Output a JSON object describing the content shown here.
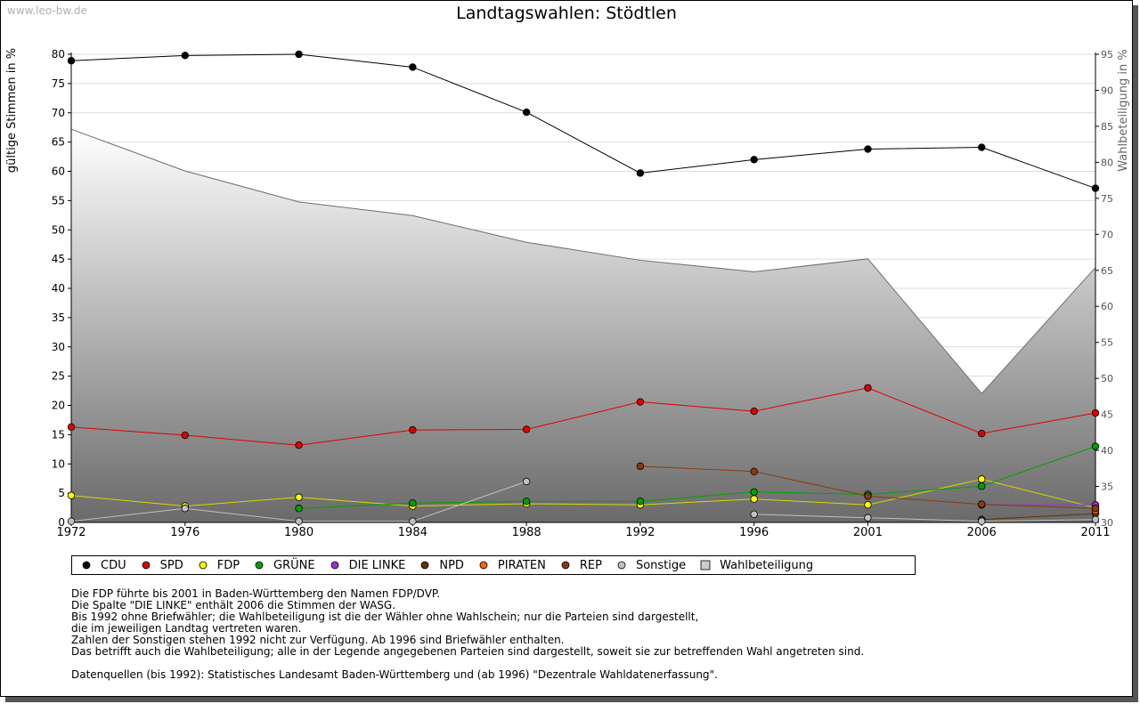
{
  "watermark": "www.leo-bw.de",
  "chart_data": {
    "type": "line",
    "title": "Landtagswahlen: Stödtlen",
    "ylabel": "gültige Stimmen in %",
    "y2label": "Wahlbeteiligung in %",
    "ylim": [
      0,
      80
    ],
    "y2lim": [
      30,
      95
    ],
    "yticks": [
      "0",
      "5",
      "10",
      "15",
      "20",
      "25",
      "30",
      "35",
      "40",
      "45",
      "50",
      "55",
      "60",
      "65",
      "70",
      "75",
      "80"
    ],
    "y2ticks": [
      "30",
      "35",
      "40",
      "45",
      "50",
      "55",
      "60",
      "65",
      "70",
      "75",
      "80",
      "85",
      "90",
      "95"
    ],
    "categories": [
      "1972",
      "1976",
      "1980",
      "1984",
      "1988",
      "1992",
      "1996",
      "2001",
      "2006",
      "2011"
    ],
    "grid": true,
    "series": [
      {
        "name": "CDU",
        "color": "#000000",
        "values": [
          78.9,
          79.8,
          80.0,
          77.8,
          70.1,
          59.7,
          62.0,
          63.8,
          64.1,
          57.1
        ]
      },
      {
        "name": "SPD",
        "color": "#e00000",
        "values": [
          16.3,
          14.9,
          13.2,
          15.8,
          15.9,
          20.6,
          19.0,
          23.0,
          15.2,
          18.7
        ]
      },
      {
        "name": "FDP",
        "color": "#ffff00",
        "values": [
          4.6,
          2.8,
          4.3,
          2.8,
          3.2,
          3.0,
          4.0,
          3.0,
          7.4,
          2.5
        ]
      },
      {
        "name": "GRÜNE",
        "color": "#00a000",
        "values": [
          null,
          null,
          2.4,
          3.3,
          3.6,
          3.6,
          5.2,
          4.8,
          6.2,
          13.0
        ]
      },
      {
        "name": "DIE LINKE",
        "color": "#9933cc",
        "values": [
          null,
          null,
          null,
          null,
          null,
          null,
          null,
          null,
          3.0,
          3.0
        ]
      },
      {
        "name": "NPD",
        "color": "#663300",
        "values": [
          null,
          null,
          null,
          null,
          null,
          null,
          null,
          null,
          0.5,
          1.5
        ]
      },
      {
        "name": "PIRATEN",
        "color": "#ff6600",
        "values": [
          null,
          null,
          null,
          null,
          null,
          null,
          null,
          null,
          null,
          2.0
        ]
      },
      {
        "name": "REP",
        "color": "#8b3a0f",
        "values": [
          null,
          null,
          null,
          null,
          null,
          9.6,
          8.7,
          4.5,
          3.1,
          2.4
        ]
      },
      {
        "name": "Sonstige",
        "color": "#c0c0c0",
        "values": [
          0.2,
          2.4,
          0.2,
          0.2,
          7.0,
          null,
          1.4,
          0.8,
          0.2,
          0.5
        ]
      }
    ],
    "area": {
      "name": "Wahlbeteiligung",
      "values": [
        84.6,
        78.8,
        74.5,
        72.6,
        68.9,
        66.4,
        64.8,
        66.6,
        47.9,
        65.4
      ]
    }
  },
  "notes": [
    "Die FDP führte bis 2001 in Baden-Württemberg den Namen FDP/DVP.",
    "Die Spalte \"DIE LINKE\" enthält 2006 die Stimmen der WASG.",
    "Bis 1992 ohne Briefwähler; die Wahlbeteiligung ist die der Wähler ohne Wahlschein; nur die Parteien sind dargestellt,",
    "die im jeweiligen Landtag vertreten waren.",
    "Zahlen der Sonstigen stehen 1992 nicht zur Verfügung. Ab 1996 sind Briefwähler enthalten.",
    "Das betrifft auch die Wahlbeteiligung; alle in der Legende angegebenen Parteien sind dargestellt, soweit sie zur betreffenden Wahl angetreten sind."
  ],
  "sources": "Datenquellen (bis 1992): Statistisches Landesamt Baden-Württemberg und (ab 1996) \"Dezentrale Wahldatenerfassung\"."
}
